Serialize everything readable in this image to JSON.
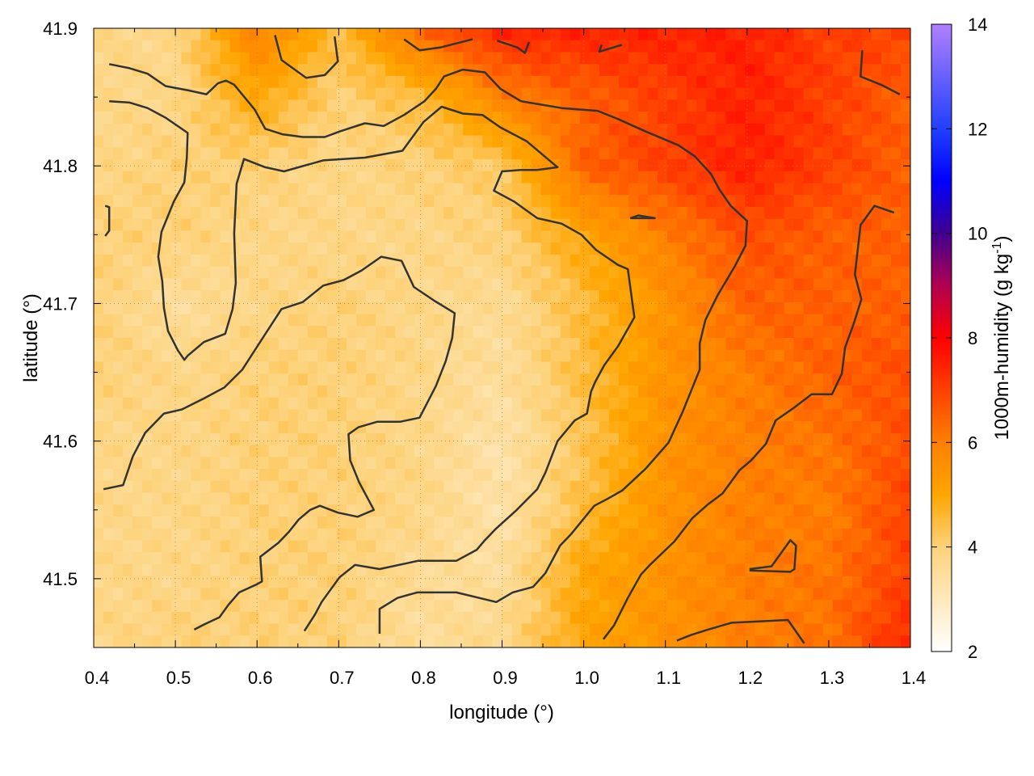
{
  "chart_data": {
    "type": "heatmap",
    "title": "",
    "xlabel": "longitude (°)",
    "ylabel": "latitude (°)",
    "colorbar_label": "1000m-humidity (g kg",
    "colorbar_label_sup": "-1",
    "colorbar_label_close": ")",
    "xlim": [
      0.4,
      1.4
    ],
    "ylim": [
      41.45,
      41.9
    ],
    "xticks": [
      "0.4",
      "0.5",
      "0.6",
      "0.7",
      "0.8",
      "0.9",
      "1.0",
      "1.1",
      "1.2",
      "1.3",
      "1.4"
    ],
    "yticks": [
      "41.5",
      "41.6",
      "41.7",
      "41.8",
      "41.9"
    ],
    "grid": true,
    "colorbar": {
      "range": [
        2,
        14
      ],
      "ticks": [
        "2",
        "4",
        "6",
        "8",
        "10",
        "12",
        "14"
      ],
      "stops": [
        {
          "v": 2,
          "color": "#ffffff"
        },
        {
          "v": 4,
          "color": "#fdd27a"
        },
        {
          "v": 5,
          "color": "#ffa500"
        },
        {
          "v": 6,
          "color": "#ff8000"
        },
        {
          "v": 7,
          "color": "#ff4000"
        },
        {
          "v": 8,
          "color": "#ff0000"
        },
        {
          "v": 9,
          "color": "#b00050"
        },
        {
          "v": 10,
          "color": "#400090"
        },
        {
          "v": 11,
          "color": "#0000ff"
        },
        {
          "v": 12,
          "color": "#2040ff"
        },
        {
          "v": 14,
          "color": "#b080ff"
        }
      ]
    },
    "grid_lon": [
      0.4,
      0.5,
      0.6,
      0.7,
      0.8,
      0.9,
      1.0,
      1.1,
      1.2,
      1.3,
      1.4
    ],
    "grid_lat": [
      41.9,
      41.85,
      41.8,
      41.75,
      41.7,
      41.65,
      41.6,
      41.55,
      41.5,
      41.45
    ],
    "values": [
      [
        3.8,
        3.8,
        6.0,
        4.5,
        6.5,
        7.5,
        7.5,
        7.5,
        7.5,
        7.0,
        7.0
      ],
      [
        3.8,
        3.8,
        5.0,
        4.0,
        4.5,
        6.0,
        6.5,
        7.0,
        7.5,
        7.0,
        6.5
      ],
      [
        3.8,
        4.0,
        4.0,
        3.8,
        4.0,
        4.2,
        6.5,
        7.0,
        7.5,
        7.0,
        6.5
      ],
      [
        4.0,
        4.0,
        3.8,
        3.8,
        3.8,
        4.0,
        5.0,
        6.0,
        6.8,
        6.5,
        6.5
      ],
      [
        4.0,
        3.5,
        3.8,
        4.0,
        3.8,
        3.6,
        4.5,
        5.5,
        6.5,
        6.5,
        6.5
      ],
      [
        4.0,
        3.8,
        4.0,
        4.0,
        3.8,
        3.5,
        4.5,
        5.5,
        6.0,
        6.5,
        6.8
      ],
      [
        3.8,
        3.8,
        4.0,
        4.0,
        3.8,
        3.3,
        4.3,
        5.5,
        6.0,
        6.2,
        6.8
      ],
      [
        3.8,
        3.8,
        4.0,
        4.0,
        3.8,
        3.3,
        4.5,
        5.5,
        6.0,
        6.0,
        7.0
      ],
      [
        3.8,
        3.8,
        4.0,
        4.0,
        3.6,
        3.5,
        5.0,
        5.5,
        6.0,
        6.2,
        7.0
      ],
      [
        3.8,
        4.0,
        4.0,
        4.0,
        3.5,
        3.8,
        5.0,
        5.5,
        6.0,
        6.2,
        7.5
      ]
    ],
    "contours": [
      [
        [
          0.419,
          41.874
        ],
        [
          0.444,
          41.871
        ],
        [
          0.466,
          41.867
        ],
        [
          0.488,
          41.858
        ],
        [
          0.515,
          41.855
        ],
        [
          0.538,
          41.852
        ],
        [
          0.552,
          41.86
        ],
        [
          0.562,
          41.862
        ],
        [
          0.572,
          41.859
        ],
        [
          0.597,
          41.841
        ],
        [
          0.61,
          41.827
        ],
        [
          0.631,
          41.823
        ],
        [
          0.656,
          41.821
        ],
        [
          0.683,
          41.821
        ],
        [
          0.701,
          41.825
        ],
        [
          0.732,
          41.831
        ],
        [
          0.755,
          41.829
        ],
        [
          0.78,
          41.837
        ],
        [
          0.805,
          41.847
        ],
        [
          0.819,
          41.856
        ],
        [
          0.829,
          41.865
        ],
        [
          0.852,
          41.87
        ],
        [
          0.879,
          41.868
        ],
        [
          0.898,
          41.856
        ],
        [
          0.923,
          41.847
        ],
        [
          0.973,
          41.842
        ],
        [
          1.017,
          41.84
        ],
        [
          1.042,
          41.834
        ],
        [
          1.076,
          41.825
        ],
        [
          1.116,
          41.815
        ],
        [
          1.136,
          41.807
        ],
        [
          1.156,
          41.794
        ],
        [
          1.166,
          41.783
        ],
        [
          1.18,
          41.771
        ],
        [
          1.2,
          41.76
        ],
        [
          1.198,
          41.742
        ],
        [
          1.185,
          41.727
        ],
        [
          1.164,
          41.706
        ],
        [
          1.149,
          41.688
        ],
        [
          1.142,
          41.671
        ],
        [
          1.142,
          41.652
        ],
        [
          1.121,
          41.621
        ],
        [
          1.104,
          41.599
        ],
        [
          1.076,
          41.58
        ],
        [
          1.047,
          41.564
        ],
        [
          1.029,
          41.558
        ],
        [
          1.013,
          41.553
        ],
        [
          0.984,
          41.532
        ],
        [
          0.971,
          41.524
        ],
        [
          0.953,
          41.504
        ],
        [
          0.938,
          41.494
        ],
        [
          0.913,
          41.49
        ],
        [
          0.893,
          41.483
        ],
        [
          0.844,
          41.49
        ],
        [
          0.796,
          41.49
        ],
        [
          0.772,
          41.486
        ],
        [
          0.75,
          41.478
        ],
        [
          0.75,
          41.46
        ]
      ],
      [
        [
          0.419,
          41.847
        ],
        [
          0.444,
          41.846
        ],
        [
          0.466,
          41.842
        ],
        [
          0.488,
          41.835
        ],
        [
          0.515,
          41.824
        ],
        [
          0.514,
          41.806
        ],
        [
          0.511,
          41.788
        ],
        [
          0.498,
          41.774
        ],
        [
          0.483,
          41.752
        ],
        [
          0.479,
          41.734
        ],
        [
          0.484,
          41.716
        ],
        [
          0.486,
          41.697
        ],
        [
          0.491,
          41.68
        ],
        [
          0.503,
          41.666
        ],
        [
          0.511,
          41.659
        ],
        [
          0.515,
          41.662
        ],
        [
          0.535,
          41.672
        ],
        [
          0.561,
          41.678
        ],
        [
          0.57,
          41.696
        ],
        [
          0.574,
          41.715
        ],
        [
          0.572,
          41.751
        ],
        [
          0.575,
          41.787
        ],
        [
          0.584,
          41.805
        ],
        [
          0.61,
          41.799
        ],
        [
          0.633,
          41.796
        ],
        [
          0.681,
          41.804
        ],
        [
          0.732,
          41.806
        ],
        [
          0.778,
          41.811
        ],
        [
          0.804,
          41.832
        ],
        [
          0.826,
          41.843
        ],
        [
          0.852,
          41.838
        ],
        [
          0.876,
          41.837
        ],
        [
          0.898,
          41.828
        ],
        [
          0.93,
          41.818
        ],
        [
          0.968,
          41.799
        ],
        [
          0.943,
          41.797
        ],
        [
          0.923,
          41.797
        ],
        [
          0.9,
          41.796
        ],
        [
          0.89,
          41.782
        ],
        [
          0.915,
          41.774
        ],
        [
          0.943,
          41.762
        ],
        [
          0.973,
          41.758
        ],
        [
          0.997,
          41.75
        ],
        [
          1.015,
          41.739
        ],
        [
          1.042,
          41.728
        ],
        [
          1.054,
          41.725
        ],
        [
          1.062,
          41.69
        ],
        [
          1.042,
          41.669
        ],
        [
          1.025,
          41.655
        ],
        [
          1.014,
          41.643
        ],
        [
          1.009,
          41.636
        ],
        [
          1.004,
          41.62
        ],
        [
          0.989,
          41.615
        ],
        [
          0.968,
          41.6
        ],
        [
          0.953,
          41.577
        ],
        [
          0.943,
          41.565
        ],
        [
          0.918,
          41.55
        ],
        [
          0.892,
          41.536
        ],
        [
          0.879,
          41.528
        ],
        [
          0.869,
          41.521
        ],
        [
          0.844,
          41.513
        ],
        [
          0.797,
          41.513
        ],
        [
          0.75,
          41.507
        ],
        [
          0.72,
          41.51
        ],
        [
          0.701,
          41.501
        ],
        [
          0.679,
          41.483
        ],
        [
          0.671,
          41.474
        ],
        [
          0.658,
          41.462
        ]
      ],
      [
        [
          0.412,
          41.565
        ],
        [
          0.436,
          41.568
        ],
        [
          0.448,
          41.589
        ],
        [
          0.463,
          41.606
        ],
        [
          0.486,
          41.62
        ],
        [
          0.508,
          41.623
        ],
        [
          0.535,
          41.631
        ],
        [
          0.56,
          41.639
        ],
        [
          0.582,
          41.652
        ],
        [
          0.607,
          41.675
        ],
        [
          0.63,
          41.696
        ],
        [
          0.656,
          41.701
        ],
        [
          0.681,
          41.713
        ],
        [
          0.706,
          41.717
        ],
        [
          0.728,
          41.724
        ],
        [
          0.752,
          41.734
        ],
        [
          0.777,
          41.731
        ],
        [
          0.792,
          41.712
        ],
        [
          0.817,
          41.702
        ],
        [
          0.842,
          41.693
        ],
        [
          0.839,
          41.675
        ],
        [
          0.831,
          41.658
        ],
        [
          0.819,
          41.64
        ],
        [
          0.799,
          41.617
        ],
        [
          0.775,
          41.614
        ],
        [
          0.747,
          41.614
        ],
        [
          0.724,
          41.61
        ],
        [
          0.712,
          41.605
        ],
        [
          0.714,
          41.586
        ],
        [
          0.725,
          41.57
        ],
        [
          0.743,
          41.55
        ],
        [
          0.723,
          41.545
        ],
        [
          0.699,
          41.548
        ],
        [
          0.677,
          41.553
        ],
        [
          0.665,
          41.55
        ],
        [
          0.651,
          41.543
        ],
        [
          0.639,
          41.534
        ],
        [
          0.626,
          41.526
        ],
        [
          0.604,
          41.516
        ],
        [
          0.606,
          41.498
        ],
        [
          0.6,
          41.496
        ],
        [
          0.578,
          41.49
        ],
        [
          0.565,
          41.481
        ],
        [
          0.554,
          41.472
        ],
        [
          0.536,
          41.467
        ],
        [
          0.523,
          41.463
        ]
      ],
      [
        [
          1.38,
          41.766
        ],
        [
          1.356,
          41.771
        ],
        [
          1.339,
          41.757
        ],
        [
          1.332,
          41.721
        ],
        [
          1.34,
          41.703
        ],
        [
          1.331,
          41.686
        ],
        [
          1.32,
          41.668
        ],
        [
          1.316,
          41.649
        ],
        [
          1.304,
          41.634
        ],
        [
          1.279,
          41.634
        ],
        [
          1.257,
          41.624
        ],
        [
          1.235,
          41.615
        ],
        [
          1.223,
          41.598
        ],
        [
          1.205,
          41.586
        ],
        [
          1.191,
          41.579
        ],
        [
          1.17,
          41.562
        ],
        [
          1.152,
          41.554
        ],
        [
          1.133,
          41.544
        ],
        [
          1.111,
          41.527
        ],
        [
          1.081,
          41.51
        ],
        [
          1.07,
          41.503
        ],
        [
          1.054,
          41.486
        ],
        [
          1.037,
          41.466
        ],
        [
          1.024,
          41.456
        ]
      ],
      [
        [
          1.114,
          41.455
        ],
        [
          1.131,
          41.459
        ],
        [
          1.152,
          41.463
        ],
        [
          1.181,
          41.468
        ],
        [
          1.25,
          41.47
        ],
        [
          1.27,
          41.453
        ]
      ],
      [
        [
          1.203,
          41.507
        ],
        [
          1.23,
          41.509
        ],
        [
          1.253,
          41.528
        ],
        [
          1.26,
          41.524
        ],
        [
          1.258,
          41.507
        ],
        [
          1.253,
          41.505
        ],
        [
          1.203,
          41.506
        ]
      ],
      [
        [
          1.341,
          41.884
        ],
        [
          1.339,
          41.865
        ],
        [
          1.364,
          41.859
        ],
        [
          1.387,
          41.852
        ]
      ],
      [
        [
          0.622,
          41.895
        ],
        [
          0.63,
          41.877
        ],
        [
          0.66,
          41.864
        ],
        [
          0.683,
          41.866
        ],
        [
          0.699,
          41.876
        ],
        [
          0.695,
          41.894
        ]
      ],
      [
        [
          0.78,
          41.892
        ],
        [
          0.799,
          41.884
        ],
        [
          0.824,
          41.886
        ],
        [
          0.864,
          41.892
        ]
      ],
      [
        [
          0.894,
          41.891
        ],
        [
          0.919,
          41.886
        ],
        [
          0.928,
          41.882
        ],
        [
          0.933,
          41.89
        ]
      ],
      [
        [
          1.022,
          41.888
        ],
        [
          1.019,
          41.883
        ],
        [
          1.047,
          41.888
        ]
      ],
      [
        [
          1.057,
          41.762
        ],
        [
          1.067,
          41.764
        ],
        [
          1.087,
          41.762
        ],
        [
          1.057,
          41.762
        ]
      ],
      [
        [
          0.414,
          41.771
        ],
        [
          0.419,
          41.77
        ],
        [
          0.419,
          41.753
        ],
        [
          0.414,
          41.749
        ]
      ]
    ],
    "contour_color": "#333333"
  }
}
